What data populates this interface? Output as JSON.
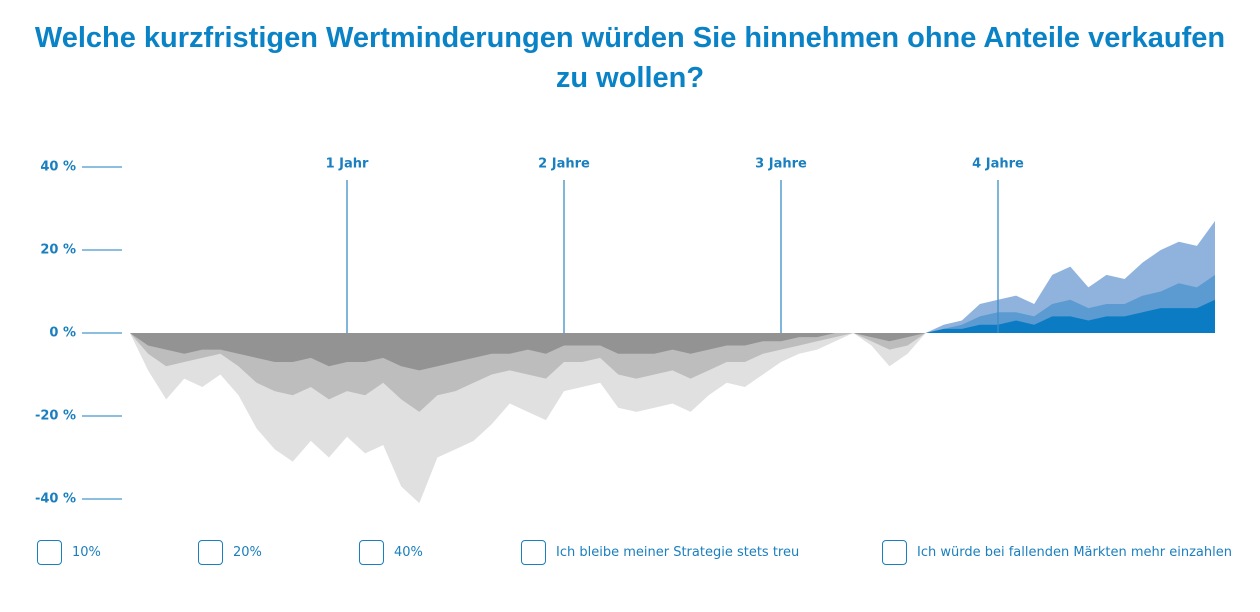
{
  "chart_data": {
    "type": "area",
    "title": "Welche kurzfristigen Wertminderungen würden Sie hinnehmen ohne Anteile verkaufen zu wollen?",
    "x": [
      0,
      1,
      2,
      3,
      4,
      5,
      6,
      7,
      8,
      9,
      10,
      11,
      12,
      13,
      14,
      15,
      16,
      17,
      18,
      19,
      20,
      21,
      22,
      23,
      24,
      25,
      26,
      27,
      28,
      29,
      30,
      31,
      32,
      33,
      34,
      35,
      36,
      37,
      38,
      39,
      40,
      41,
      42,
      43,
      44,
      45,
      46,
      47,
      48,
      49,
      50,
      51,
      52,
      53,
      54,
      55,
      56,
      57,
      58,
      59,
      60
    ],
    "xlim": [
      0,
      60
    ],
    "ylim": [
      -40,
      40
    ],
    "yticks": [
      {
        "value": 40,
        "label": "40 %"
      },
      {
        "value": 20,
        "label": "20 %"
      },
      {
        "value": 0,
        "label": "0 %"
      },
      {
        "value": -20,
        "label": "-20 %"
      },
      {
        "value": -40,
        "label": "-40 %"
      }
    ],
    "series": [
      {
        "color": "#e0e0e0",
        "positive_color": "#8fb3dd",
        "values": [
          0,
          -9,
          -16,
          -11,
          -13,
          -10,
          -15,
          -23,
          -28,
          -31,
          -26,
          -30,
          -25,
          -29,
          -27,
          -37,
          -41,
          -30,
          -28,
          -26,
          -22,
          -17,
          -19,
          -21,
          -14,
          -13,
          -12,
          -18,
          -19,
          -18,
          -17,
          -19,
          -15,
          -12,
          -13,
          -10,
          -7,
          -5,
          -4,
          -2,
          0,
          -3,
          -8,
          -5,
          0,
          2,
          3,
          7,
          8,
          9,
          7,
          14,
          16,
          11,
          14,
          13,
          17,
          20,
          22,
          21,
          27
        ]
      },
      {
        "color": "#bdbdbd",
        "positive_color": "#5b9bd1",
        "values": [
          0,
          -5,
          -8,
          -7,
          -6,
          -5,
          -8,
          -12,
          -14,
          -15,
          -13,
          -16,
          -14,
          -15,
          -12,
          -16,
          -19,
          -15,
          -14,
          -12,
          -10,
          -9,
          -10,
          -11,
          -7,
          -7,
          -6,
          -10,
          -11,
          -10,
          -9,
          -11,
          -9,
          -7,
          -7,
          -5,
          -4,
          -3,
          -2,
          -1,
          0,
          -2,
          -4,
          -3,
          0,
          1,
          2,
          4,
          5,
          5,
          4,
          7,
          8,
          6,
          7,
          7,
          9,
          10,
          12,
          11,
          14
        ]
      },
      {
        "color": "#939393",
        "positive_color": "#0b7cc3",
        "values": [
          0,
          -3,
          -4,
          -5,
          -4,
          -4,
          -5,
          -6,
          -7,
          -7,
          -6,
          -8,
          -7,
          -7,
          -6,
          -8,
          -9,
          -8,
          -7,
          -6,
          -5,
          -5,
          -4,
          -5,
          -3,
          -3,
          -3,
          -5,
          -5,
          -5,
          -4,
          -5,
          -4,
          -3,
          -3,
          -2,
          -2,
          -1,
          -1,
          0,
          0,
          -1,
          -2,
          -1,
          0,
          1,
          1,
          2,
          2,
          3,
          2,
          4,
          4,
          3,
          4,
          4,
          5,
          6,
          6,
          6,
          8
        ]
      }
    ],
    "annotations": [
      {
        "x": 12,
        "label": "1 Jahr"
      },
      {
        "x": 24,
        "label": "2 Jahre"
      },
      {
        "x": 36,
        "label": "3 Jahre"
      },
      {
        "x": 48,
        "label": "4 Jahre"
      }
    ],
    "options": [
      "10%",
      "20%",
      "40%",
      "Ich bleibe meiner Strategie stets treu",
      "Ich würde bei fallenden Märkten mehr einzahlen"
    ]
  }
}
